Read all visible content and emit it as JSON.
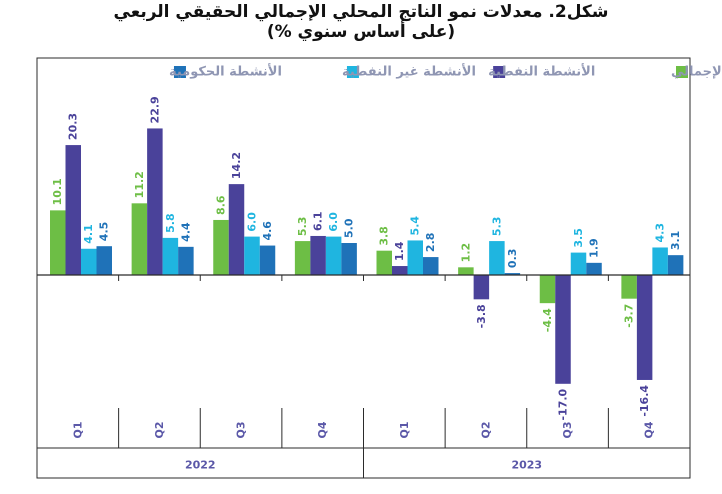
{
  "chart_data": {
    "type": "bar",
    "title": "شكل2. معدلات نمو الناتج المحلي الإجمالي الحقيقي الربعي",
    "subtitle": "(على أساس سنوي %)",
    "legend_position": "top",
    "grid": false,
    "ylim": [
      -20,
      25
    ],
    "categories": [
      "Q1",
      "Q2",
      "Q3",
      "Q4",
      "Q1",
      "Q2",
      "Q3",
      "Q4"
    ],
    "groups": [
      {
        "label": "2022",
        "categories": [
          "Q1",
          "Q2",
          "Q3",
          "Q4"
        ]
      },
      {
        "label": "2023",
        "categories": [
          "Q1",
          "Q2",
          "Q3",
          "Q4"
        ]
      }
    ],
    "series": [
      {
        "name": "الناتج المحلي الإجمالي",
        "color": "#6dbe45",
        "values": [
          10.1,
          11.2,
          8.6,
          5.3,
          3.8,
          1.2,
          -4.4,
          -3.7
        ]
      },
      {
        "name": "الأنشطة النفطية",
        "color": "#4a429a",
        "values": [
          20.3,
          22.9,
          14.2,
          6.1,
          1.4,
          -3.8,
          -17.0,
          -16.4
        ]
      },
      {
        "name": "الأنشطة غير النفطية",
        "color": "#1fb5e0",
        "values": [
          4.1,
          5.8,
          6.0,
          6.0,
          5.4,
          5.3,
          3.5,
          4.3
        ]
      },
      {
        "name": "الأنشطة الحكومية",
        "color": "#1f72b8",
        "values": [
          4.5,
          4.4,
          4.6,
          5.0,
          2.8,
          0.3,
          1.9,
          3.1
        ]
      }
    ],
    "value_labels": [
      [
        "10.1",
        "11.2",
        "8.6",
        "5.3",
        "3.8",
        "1.2",
        "-4.4",
        "-3.7"
      ],
      [
        "20.3",
        "22.9",
        "14.2",
        "6.1",
        "1.4",
        "-3.8",
        "-17.0",
        "-16.4"
      ],
      [
        "4.1",
        "5.8",
        "6.0",
        "6.0",
        "5.4",
        "5.3",
        "3.5",
        "4.3"
      ],
      [
        "4.5",
        "4.4",
        "4.6",
        "5.0",
        "2.8",
        "0.3",
        "1.9",
        "3.1"
      ]
    ]
  }
}
